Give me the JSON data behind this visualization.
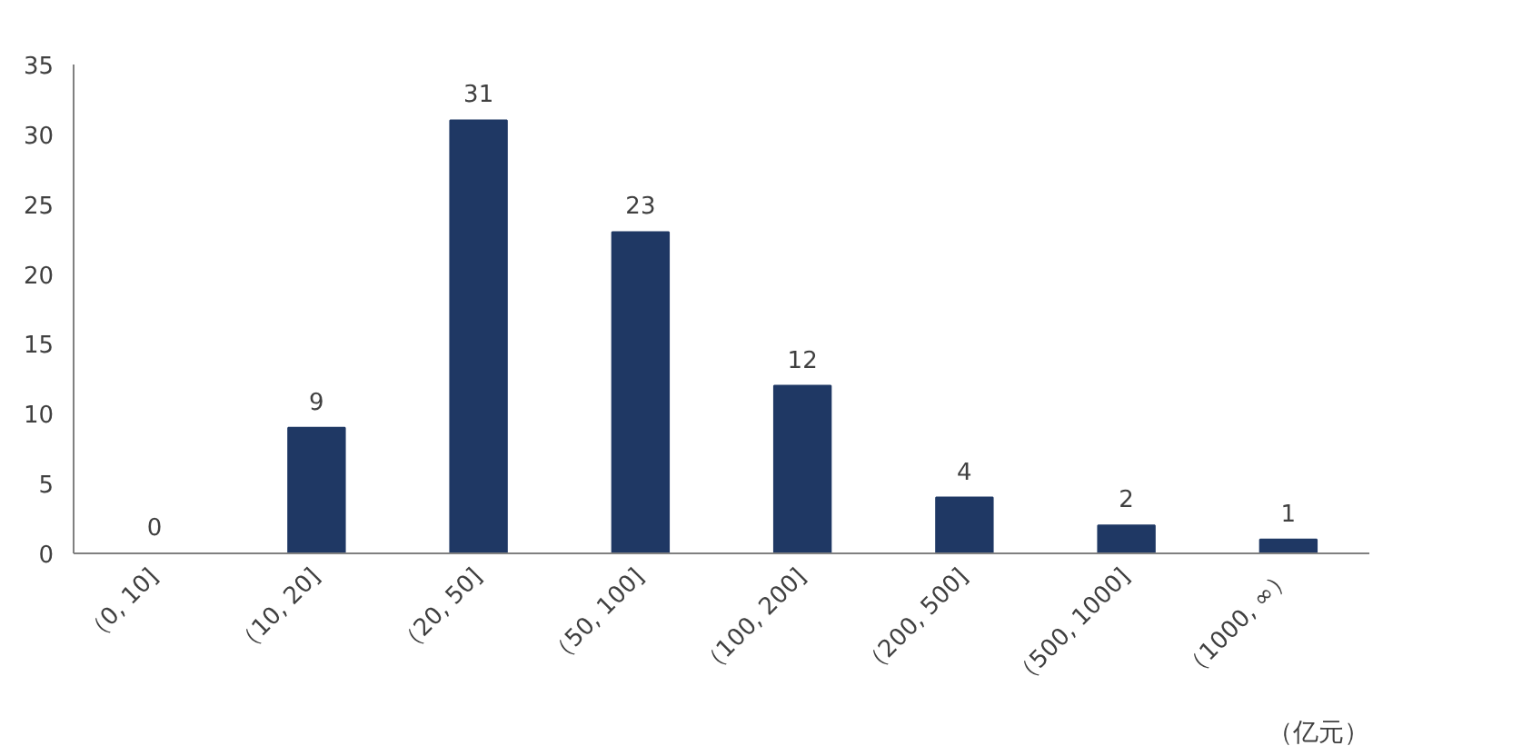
{
  "chart_data": {
    "type": "bar",
    "categories": [
      "（0, 10]",
      "（10, 20]",
      "（20, 50]",
      "（50, 100]",
      "（100, 200]",
      "（200, 500]",
      "（500, 1000]",
      "（1000, ∞）"
    ],
    "values": [
      0,
      9,
      31,
      23,
      12,
      4,
      2,
      1
    ],
    "color": "#1f3864",
    "xlabel": "（亿元）",
    "ylim": [
      0,
      35
    ],
    "yticks": [
      0,
      5,
      10,
      15,
      20,
      25,
      30,
      35
    ],
    "grid": false,
    "data_labels": true
  }
}
